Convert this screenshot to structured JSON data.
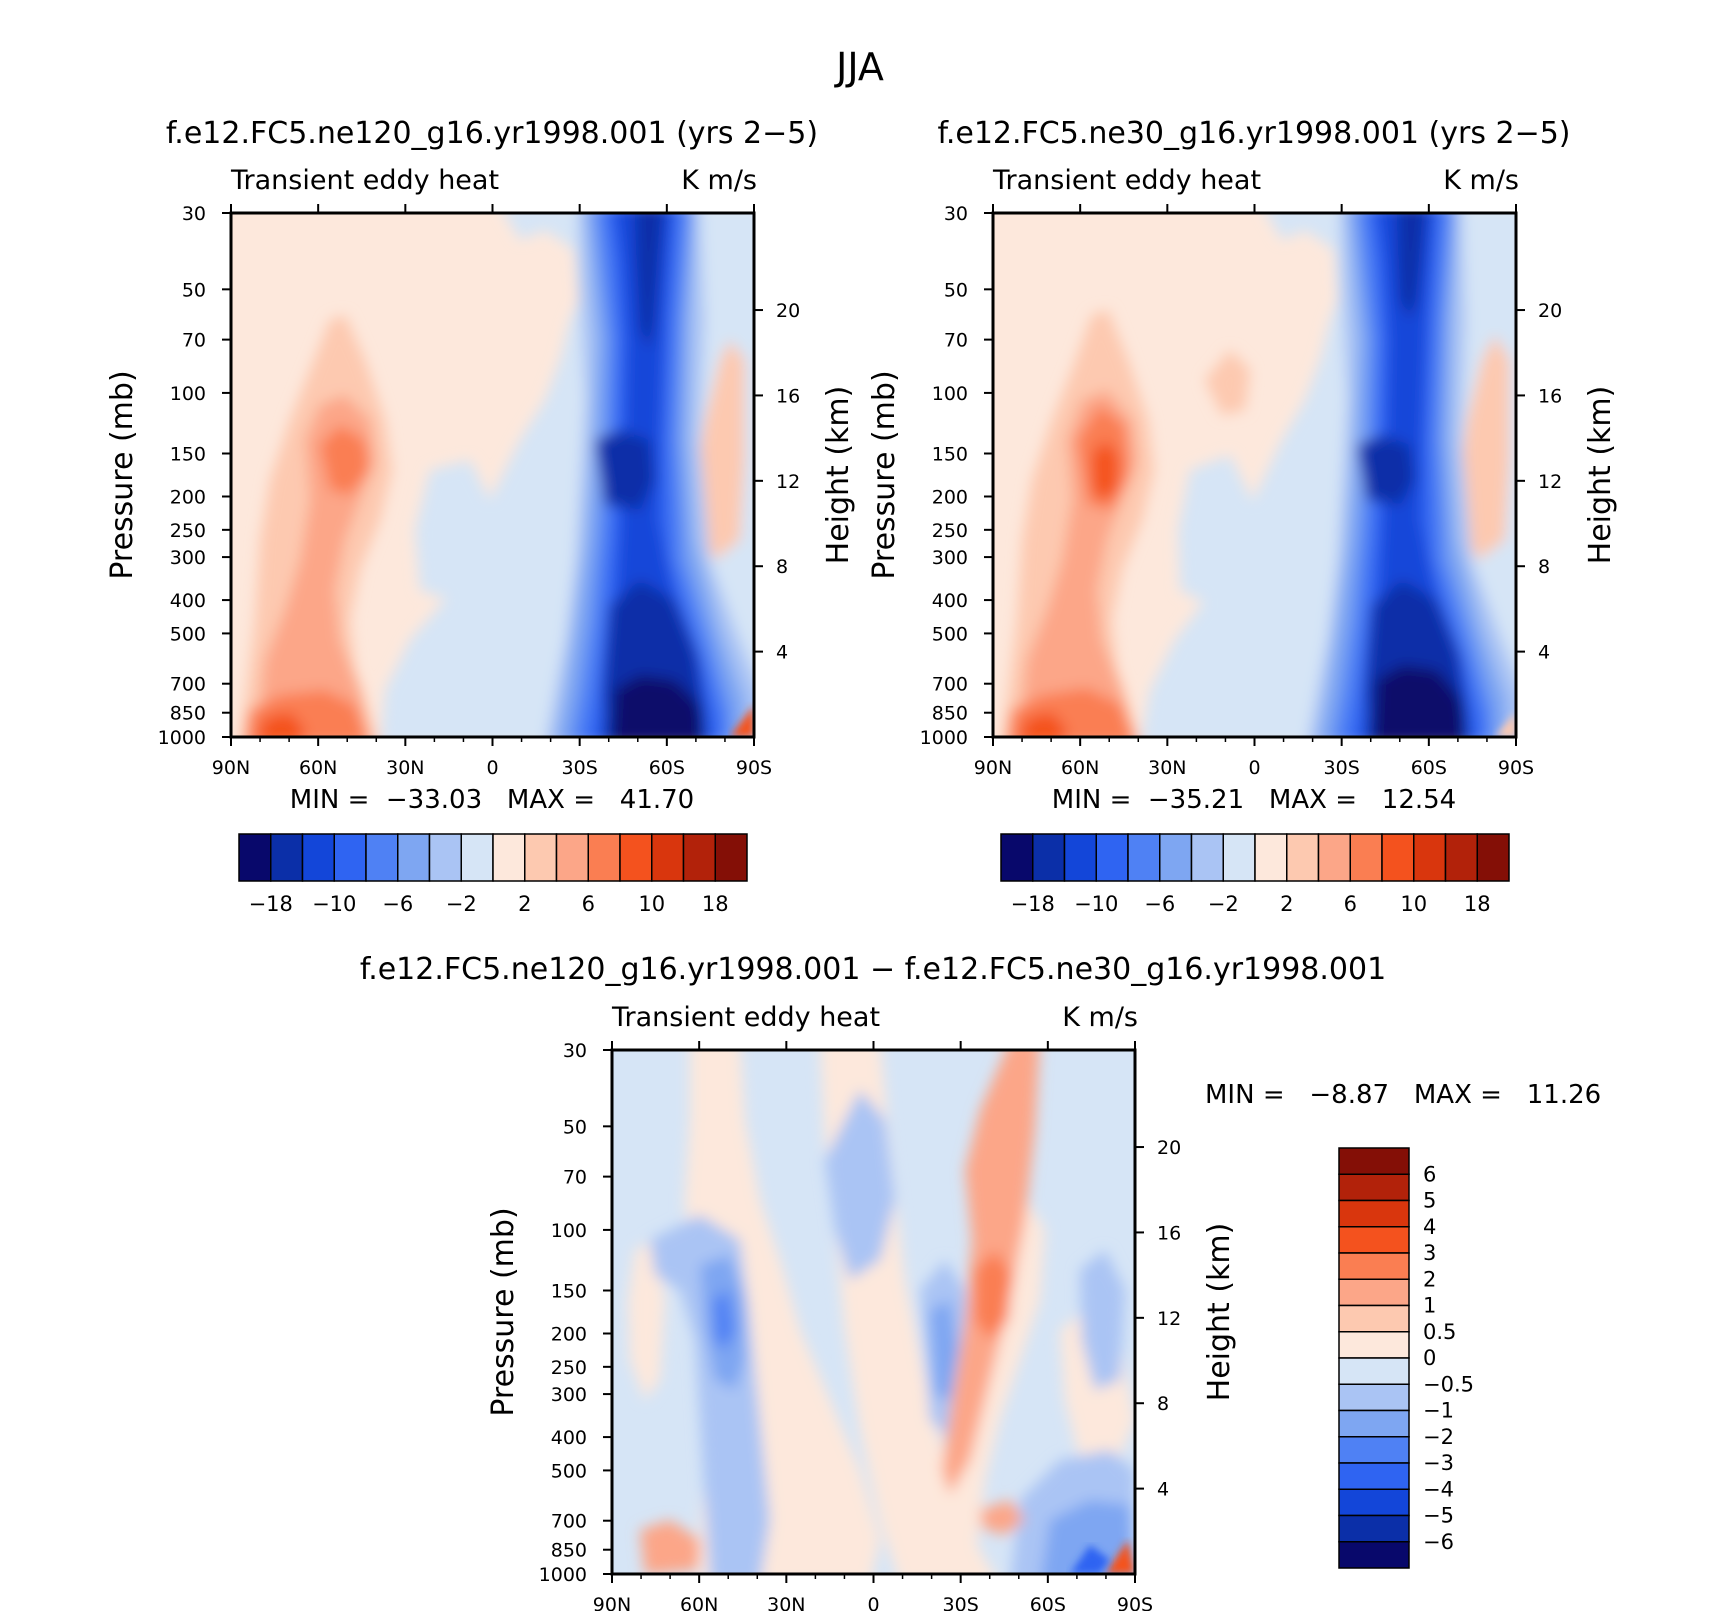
{
  "figure_title": "JJA",
  "panels": [
    {
      "id": "ne120",
      "title": "f.e12.FC5.ne120_g16.yr1998.001 (yrs 2−5)",
      "left_label": "Transient eddy heat",
      "right_label": "K m/s",
      "min_max_text": "MIN =  −33.03   MAX =   41.70",
      "colorbar_labels": [
        "−18",
        "−10",
        "−6",
        "−2",
        "2",
        "6",
        "10",
        "18"
      ]
    },
    {
      "id": "ne30",
      "title": "f.e12.FC5.ne30_g16.yr1998.001 (yrs 2−5)",
      "left_label": "Transient eddy heat",
      "right_label": "K m/s",
      "min_max_text": "MIN =  −35.21   MAX =   12.54",
      "colorbar_labels": [
        "−18",
        "−10",
        "−6",
        "−2",
        "2",
        "6",
        "10",
        "18"
      ]
    },
    {
      "id": "diff",
      "title": "f.e12.FC5.ne120_g16.yr1998.001 − f.e12.FC5.ne30_g16.yr1998.001",
      "left_label": "Transient eddy heat",
      "right_label": "K m/s",
      "min_max_text": "MIN =   −8.87   MAX =   11.26",
      "colorbar_labels": [
        "6",
        "5",
        "4",
        "3",
        "2",
        "1",
        "0.5",
        "0",
        "−0.5",
        "−1",
        "−2",
        "−3",
        "−4",
        "−5",
        "−6"
      ]
    }
  ],
  "chart_data": [
    {
      "type": "heatmap",
      "title": "f.e12.FC5.ne120_g16.yr1998.001 (yrs 2−5)",
      "subtitle_left": "Transient eddy heat",
      "subtitle_right": "K m/s",
      "xlabel": "",
      "ylabel": "Pressure (mb)",
      "ylabel_right": "Height (km)",
      "x_ticks": [
        "90N",
        "60N",
        "30N",
        "0",
        "30S",
        "60S",
        "90S"
      ],
      "y_ticks": [
        30,
        50,
        70,
        100,
        150,
        200,
        250,
        300,
        400,
        500,
        700,
        850,
        1000
      ],
      "y_right_ticks": [
        4,
        8,
        12,
        16,
        20
      ],
      "ylim": [
        1000,
        30
      ],
      "y_scale": "log",
      "min": -33.03,
      "max": 41.7,
      "contour_levels": [
        -18,
        -14,
        -10,
        -8,
        -6,
        -4,
        -2,
        0,
        2,
        4,
        6,
        8,
        10,
        14,
        18
      ]
    },
    {
      "type": "heatmap",
      "title": "f.e12.FC5.ne30_g16.yr1998.001 (yrs 2−5)",
      "subtitle_left": "Transient eddy heat",
      "subtitle_right": "K m/s",
      "xlabel": "",
      "ylabel": "Pressure (mb)",
      "ylabel_right": "Height (km)",
      "x_ticks": [
        "90N",
        "60N",
        "30N",
        "0",
        "30S",
        "60S",
        "90S"
      ],
      "y_ticks": [
        30,
        50,
        70,
        100,
        150,
        200,
        250,
        300,
        400,
        500,
        700,
        850,
        1000
      ],
      "y_right_ticks": [
        4,
        8,
        12,
        16,
        20
      ],
      "ylim": [
        1000,
        30
      ],
      "y_scale": "log",
      "min": -35.21,
      "max": 12.54,
      "contour_levels": [
        -18,
        -14,
        -10,
        -8,
        -6,
        -4,
        -2,
        0,
        2,
        4,
        6,
        8,
        10,
        14,
        18
      ]
    },
    {
      "type": "heatmap",
      "title": "f.e12.FC5.ne120_g16.yr1998.001 − f.e12.FC5.ne30_g16.yr1998.001",
      "subtitle_left": "Transient eddy heat",
      "subtitle_right": "K m/s",
      "xlabel": "",
      "ylabel": "Pressure (mb)",
      "ylabel_right": "Height (km)",
      "x_ticks": [
        "90N",
        "60N",
        "30N",
        "0",
        "30S",
        "60S",
        "90S"
      ],
      "y_ticks": [
        30,
        50,
        70,
        100,
        150,
        200,
        250,
        300,
        400,
        500,
        700,
        850,
        1000
      ],
      "y_right_ticks": [
        4,
        8,
        12,
        16,
        20
      ],
      "ylim": [
        1000,
        30
      ],
      "y_scale": "log",
      "min": -8.87,
      "max": 11.26,
      "contour_levels": [
        -6,
        -5,
        -4,
        -3,
        -2,
        -1,
        -0.5,
        0,
        0.5,
        1,
        2,
        3,
        4,
        5,
        6
      ]
    }
  ],
  "colors": {
    "scale": [
      "#08086b",
      "#0b2fa8",
      "#1346d9",
      "#2f64f2",
      "#4f81f4",
      "#7ea6f2",
      "#aac4f4",
      "#d6e5f6",
      "#fde8dc",
      "#fdc9b0",
      "#fca688",
      "#fa7e52",
      "#f4521e",
      "#d9360d",
      "#b2220a",
      "#840f06"
    ],
    "scale_diff": [
      "#840f06",
      "#b2220a",
      "#d9360d",
      "#f4521e",
      "#fa7e52",
      "#fca688",
      "#fdc9b0",
      "#fde8dc",
      "#d6e5f6",
      "#aac4f4",
      "#7ea6f2",
      "#4f81f4",
      "#2f64f2",
      "#1346d9",
      "#0b2fa8",
      "#08086b"
    ]
  }
}
